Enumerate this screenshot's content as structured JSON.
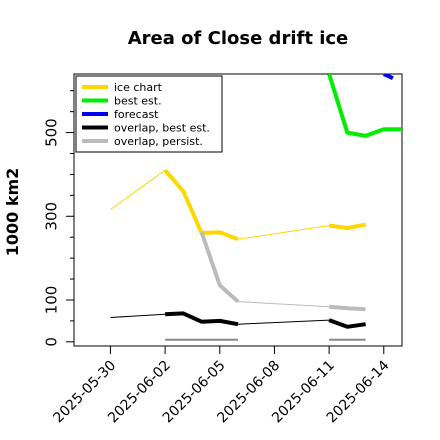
{
  "chart_data": {
    "type": "line",
    "title": "Area of Close drift ice",
    "xlabel": "",
    "ylabel": "1000 km2",
    "ylim": [
      -10,
      640
    ],
    "xlim": [
      "2025-05-28",
      "2025-06-15"
    ],
    "yticks": [
      0,
      100,
      300,
      500
    ],
    "yminor_ticks": [
      50,
      150,
      200,
      250,
      350,
      400,
      450,
      550,
      600
    ],
    "xticks": [
      {
        "date": "2025-05-30",
        "label": "2025-05-30",
        "color": "#000000"
      },
      {
        "date": "2025-06-02",
        "label": "2025-06-02",
        "color": "#000000"
      },
      {
        "date": "2025-06-05",
        "label": "2025-06-05",
        "color": "#228B22"
      },
      {
        "date": "2025-06-08",
        "label": "2025-06-08",
        "color": "#000000"
      },
      {
        "date": "2025-06-11",
        "label": "2025-06-11",
        "color": "#000000"
      },
      {
        "date": "2025-06-14",
        "label": "2025-06-14",
        "color": "#000000"
      }
    ],
    "legend": {
      "position": "top-left",
      "entries": [
        {
          "name": "ice chart",
          "color": "#FFD700"
        },
        {
          "name": "best est.",
          "color": "#00EE00"
        },
        {
          "name": "forecast",
          "color": "#0000EE"
        },
        {
          "name": "overlap, best est.",
          "color": "#000000"
        },
        {
          "name": "overlap, persist.",
          "color": "#BBBBBB"
        }
      ]
    },
    "series": [
      {
        "key": "ice_thin",
        "color": "#FFD700",
        "width": 1,
        "points": [
          [
            "2025-05-30",
            316
          ],
          [
            "2025-06-02",
            410
          ],
          [
            "2025-06-03",
            360
          ],
          [
            "2025-06-04",
            260
          ],
          [
            "2025-06-05",
            262
          ],
          [
            "2025-06-06",
            245
          ],
          [
            "2025-06-11",
            278
          ],
          [
            "2025-06-12",
            272
          ],
          [
            "2025-06-13",
            280
          ]
        ]
      },
      {
        "key": "ice_thick",
        "color": "#FFD700",
        "width": 4,
        "points": [
          [
            "2025-06-02",
            410
          ],
          [
            "2025-06-03",
            360
          ],
          [
            "2025-06-04",
            260
          ],
          [
            "2025-06-05",
            262
          ],
          [
            "2025-06-06",
            245
          ]
        ]
      },
      {
        "key": "ice_thick2",
        "color": "#FFD700",
        "width": 4,
        "points": [
          [
            "2025-06-11",
            278
          ],
          [
            "2025-06-12",
            272
          ],
          [
            "2025-06-13",
            280
          ]
        ]
      },
      {
        "key": "best_est",
        "color": "#00EE00",
        "width": 4,
        "points": [
          [
            "2025-06-11",
            640
          ],
          [
            "2025-06-12",
            500
          ],
          [
            "2025-06-13",
            492
          ],
          [
            "2025-06-14",
            508
          ],
          [
            "2025-06-15",
            508
          ]
        ]
      },
      {
        "key": "forecast",
        "color": "#0000EE",
        "width": 4,
        "points": [
          [
            "2025-06-14",
            640
          ],
          [
            "2025-06-14.5",
            630
          ]
        ]
      },
      {
        "key": "persist",
        "color": "#BBBBBB",
        "width": 4,
        "points": [
          [
            "2025-06-04",
            262
          ],
          [
            "2025-06-05",
            135
          ],
          [
            "2025-06-06",
            96
          ]
        ]
      },
      {
        "key": "persist_thin",
        "color": "#BBBBBB",
        "width": 1,
        "points": [
          [
            "2025-06-06",
            96
          ],
          [
            "2025-06-11",
            84
          ]
        ]
      },
      {
        "key": "persist2",
        "color": "#BBBBBB",
        "width": 4,
        "points": [
          [
            "2025-06-11",
            84
          ],
          [
            "2025-06-12",
            80
          ],
          [
            "2025-06-13",
            78
          ]
        ]
      },
      {
        "key": "overlap_thin",
        "color": "#000000",
        "width": 1,
        "points": [
          [
            "2025-05-30",
            58
          ],
          [
            "2025-06-02",
            66
          ],
          [
            "2025-06-03",
            68
          ],
          [
            "2025-06-04",
            48
          ],
          [
            "2025-06-05",
            50
          ],
          [
            "2025-06-06",
            42
          ],
          [
            "2025-06-11",
            52
          ],
          [
            "2025-06-12",
            36
          ],
          [
            "2025-06-13",
            42
          ]
        ]
      },
      {
        "key": "overlap",
        "color": "#000000",
        "width": 4,
        "points": [
          [
            "2025-06-02",
            66
          ],
          [
            "2025-06-03",
            68
          ],
          [
            "2025-06-04",
            48
          ],
          [
            "2025-06-05",
            50
          ],
          [
            "2025-06-06",
            42
          ]
        ]
      },
      {
        "key": "overlap2",
        "color": "#000000",
        "width": 4,
        "points": [
          [
            "2025-06-11",
            52
          ],
          [
            "2025-06-12",
            36
          ],
          [
            "2025-06-13",
            42
          ]
        ]
      },
      {
        "key": "base1",
        "color": "#888888",
        "width": 2,
        "points": [
          [
            "2025-06-02",
            5
          ],
          [
            "2025-06-06",
            5
          ]
        ]
      },
      {
        "key": "base2",
        "color": "#888888",
        "width": 2,
        "points": [
          [
            "2025-06-11",
            5
          ],
          [
            "2025-06-13",
            5
          ]
        ]
      }
    ]
  }
}
